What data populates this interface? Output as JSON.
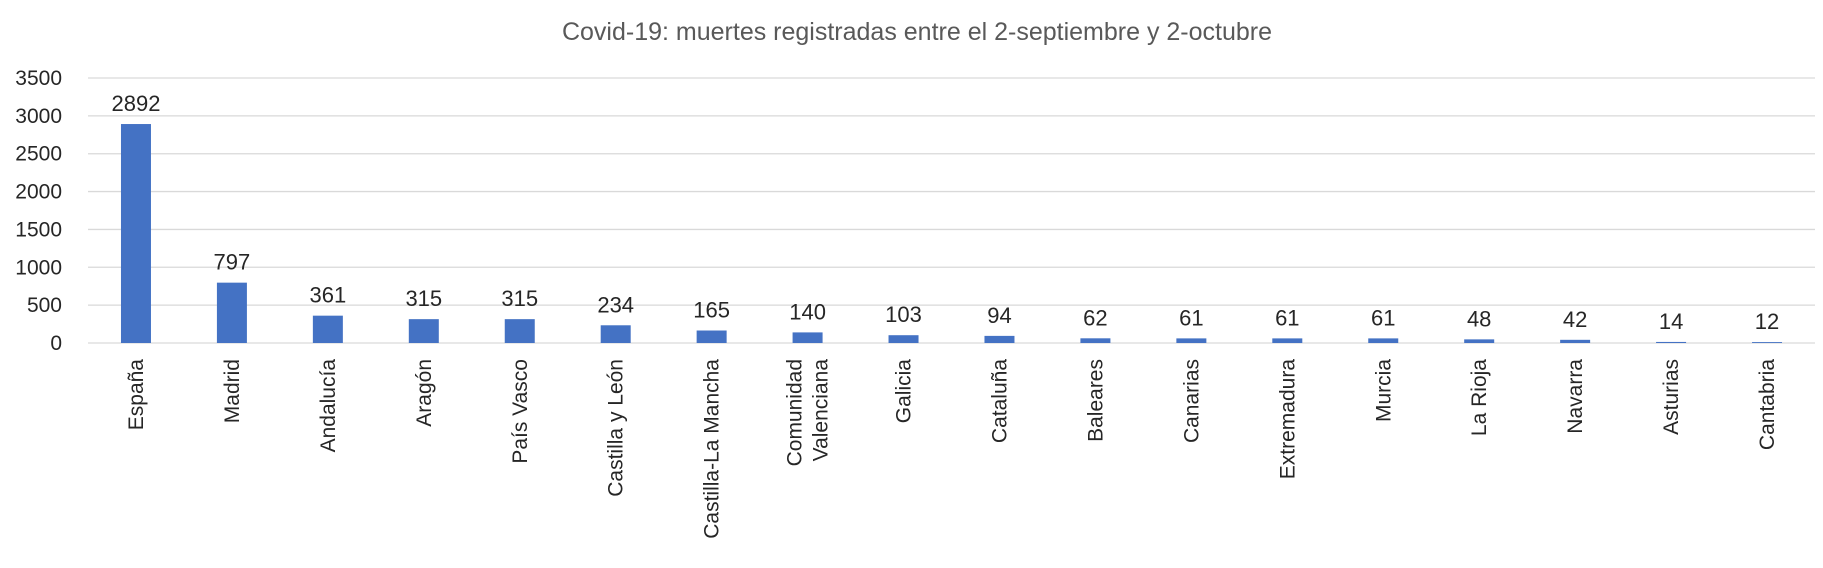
{
  "colors": {
    "bar": "#4472c4",
    "grid": "#d9d9d9",
    "text": "#262626",
    "title": "#595959"
  },
  "chart_data": {
    "type": "bar",
    "title": "Covid-19: muertes registradas entre el 2-septiembre y 2-octubre",
    "xlabel": "",
    "ylabel": "",
    "ylim": [
      0,
      3500
    ],
    "yticks": [
      "0",
      "500",
      "1000",
      "1500",
      "2000",
      "2500",
      "3000",
      "3500"
    ],
    "grid": true,
    "legend": "none",
    "categories": [
      "España",
      "Madrid",
      "Andalucía",
      "Aragón",
      "País Vasco",
      "Castilla y León",
      "Castilla-La Mancha",
      "Comunidad Valenciana",
      "Galicia",
      "Cataluña",
      "Baleares",
      "Canarias",
      "Extremadura",
      "Murcia",
      "La Rioja",
      "Navarra",
      "Asturias",
      "Cantabria"
    ],
    "values": [
      2892,
      797,
      361,
      315,
      315,
      234,
      165,
      140,
      103,
      94,
      62,
      61,
      61,
      61,
      48,
      42,
      14,
      12
    ],
    "data_labels": [
      "2892",
      "797",
      "361",
      "315",
      "315",
      "234",
      "165",
      "140",
      "103",
      "94",
      "62",
      "61",
      "61",
      "61",
      "48",
      "42",
      "14",
      "12"
    ]
  }
}
